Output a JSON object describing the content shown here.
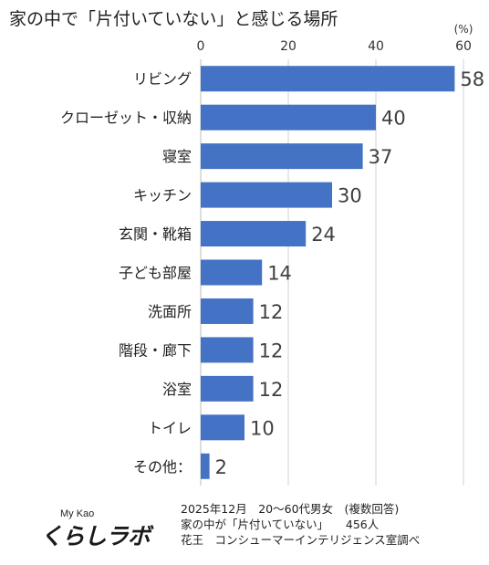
{
  "title": "家の中で「片付いていない」と感じる場所",
  "chart_data": {
    "type": "bar",
    "orientation": "horizontal",
    "title": "家の中で「片付いていない」と感じる場所",
    "unit_label": "(%)",
    "xlim": [
      0,
      60
    ],
    "xticks": [
      0,
      20,
      40,
      60
    ],
    "grid": true,
    "bar_color": "#4472c4",
    "categories": [
      "リビング",
      "クローゼット・収納",
      "寝室",
      "キッチン",
      "玄関・靴箱",
      "子ども部屋",
      "洗面所",
      "階段・廊下",
      "浴室",
      "トイレ",
      "その他："
    ],
    "values": [
      58,
      40,
      37,
      30,
      24,
      14,
      12,
      12,
      12,
      10,
      2
    ]
  },
  "footer": {
    "line1": "2025年12月　20～60代男女　(複数回答)",
    "line2": "家の中が「片付いていない」　　456人",
    "line3": "花王　コンシューマーインテリジェンス室調べ"
  },
  "logo": {
    "top": "My Kao",
    "main": "くらしラボ"
  }
}
